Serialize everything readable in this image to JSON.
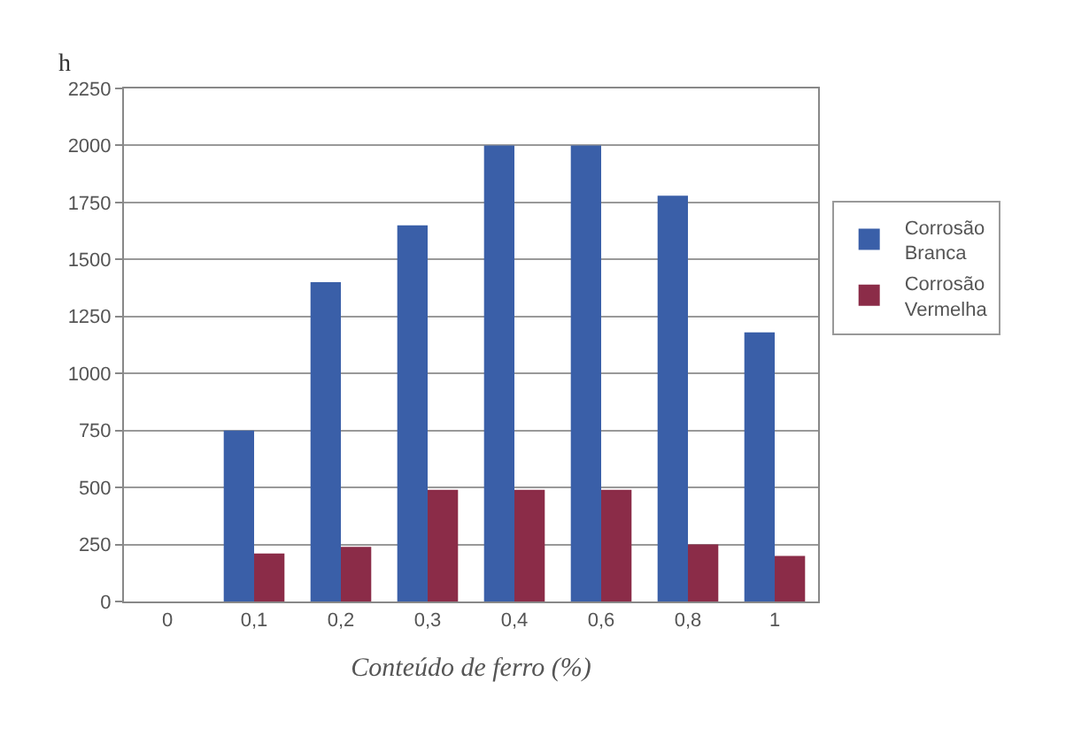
{
  "chart_data": {
    "type": "bar",
    "ylabel": "h",
    "xlabel": "Conteúdo de ferro (%)",
    "categories": [
      "0",
      "0,1",
      "0,2",
      "0,3",
      "0,4",
      "0,6",
      "0,8",
      "1"
    ],
    "series": [
      {
        "name": "Corrosão Branca",
        "color": "#3a5fa8",
        "values": [
          0,
          750,
          1400,
          1650,
          2000,
          2000,
          1780,
          1180
        ]
      },
      {
        "name": "Corrosão Vermelha",
        "color": "#8b2c48",
        "values": [
          0,
          210,
          240,
          490,
          490,
          490,
          250,
          200
        ]
      }
    ],
    "ylim": [
      0,
      2250
    ],
    "yticks": [
      0,
      250,
      500,
      750,
      1000,
      1250,
      1500,
      1750,
      2000,
      2250
    ],
    "grid": "y",
    "legend": "right"
  }
}
